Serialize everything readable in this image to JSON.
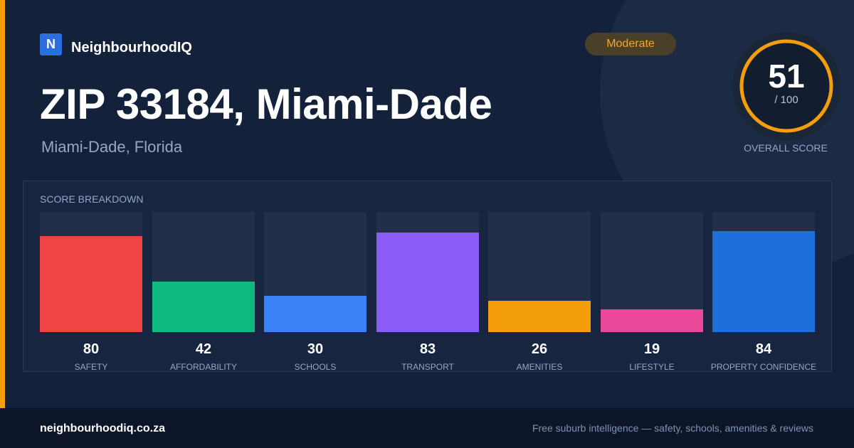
{
  "brand": {
    "logo_letter": "N",
    "name": "NeighbourhoodIQ"
  },
  "badge": {
    "label": "Moderate"
  },
  "page": {
    "title": "ZIP 33184, Miami-Dade",
    "subtitle": "Miami-Dade, Florida"
  },
  "overall": {
    "score": "51",
    "max": "/ 100",
    "label": "OVERALL SCORE",
    "fraction": 0.51
  },
  "breakdown": {
    "title": "SCORE BREAKDOWN"
  },
  "chart_data": {
    "type": "bar",
    "categories": [
      "SAFETY",
      "AFFORDABILITY",
      "SCHOOLS",
      "TRANSPORT",
      "AMENITIES",
      "LIFESTYLE",
      "PROPERTY CONFIDENCE"
    ],
    "values": [
      80,
      42,
      30,
      83,
      26,
      19,
      84
    ],
    "ylim": [
      0,
      100
    ],
    "colors": [
      "#ef4444",
      "#10b981",
      "#3b82f6",
      "#8b5cf6",
      "#f59e0b",
      "#ec4899",
      "#1e6fdb"
    ]
  },
  "footer": {
    "url": "neighbourhoodiq.co.za",
    "tagline": "Free suburb intelligence — safety, schools, amenities & reviews"
  },
  "colors": {
    "accent": "#f59e0b",
    "background": "#13213a",
    "ring_track": "#2a3446"
  }
}
